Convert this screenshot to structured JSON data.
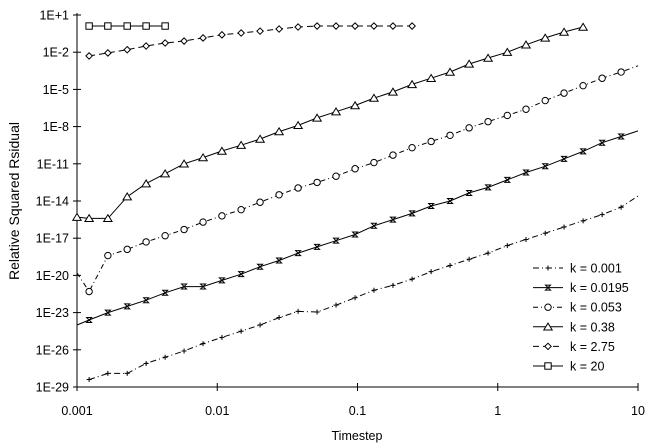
{
  "chart_data": {
    "type": "line",
    "title": "",
    "xlabel": "Timestep",
    "ylabel": "Relative Squared Rsidual",
    "xscale": "log",
    "yscale": "log",
    "xlim": [
      0.001,
      10
    ],
    "ylim_log10": [
      -29,
      1
    ],
    "x_ticks": [
      {
        "value": 0.001,
        "label": "0.001"
      },
      {
        "value": 0.01,
        "label": "0.01"
      },
      {
        "value": 0.1,
        "label": "0.1"
      },
      {
        "value": 1,
        "label": "1"
      },
      {
        "value": 10,
        "label": "10"
      }
    ],
    "y_ticks": [
      {
        "log10": 1,
        "label": "1E+1"
      },
      {
        "log10": -2,
        "label": "1E-2"
      },
      {
        "log10": -5,
        "label": "1E-5"
      },
      {
        "log10": -8,
        "label": "1E-8"
      },
      {
        "log10": -11,
        "label": "1E-11"
      },
      {
        "log10": -14,
        "label": "1E-14"
      },
      {
        "log10": -17,
        "label": "1E-17"
      },
      {
        "log10": -20,
        "label": "1E-20"
      },
      {
        "log10": -23,
        "label": "1E-23"
      },
      {
        "log10": -26,
        "label": "1E-26"
      },
      {
        "log10": -29,
        "label": "1E-29"
      }
    ],
    "grid": false,
    "legend_position": "bottom-right",
    "x": [
      0.001,
      0.00122,
      0.00166,
      0.00228,
      0.00311,
      0.00425,
      0.0058,
      0.00792,
      0.0108,
      0.0148,
      0.0202,
      0.0276,
      0.0377,
      0.0515,
      0.0703,
      0.0961,
      0.131,
      0.179,
      0.245,
      0.335,
      0.457,
      0.625,
      0.853,
      1.17,
      1.59,
      2.18,
      2.97,
      4.06,
      5.55,
      7.58,
      10
    ],
    "series": [
      {
        "name": "k = 0.001",
        "dash": "6,3,1,3",
        "marker": "plus",
        "log10_y": [
          null,
          -28.4,
          -27.9,
          -27.9,
          -27.1,
          -26.6,
          -26.1,
          -25.5,
          -25.0,
          -24.5,
          -24.0,
          -23.4,
          -22.9,
          -22.95,
          -22.4,
          -21.8,
          -21.2,
          -20.8,
          -20.3,
          -19.7,
          -19.2,
          -18.7,
          -18.2,
          -17.6,
          -17.1,
          -16.6,
          -16.1,
          -15.6,
          -15.1,
          -14.5,
          -13.6
        ]
      },
      {
        "name": "k = 0.0195",
        "dash": "",
        "marker": "hourglass",
        "log10_y": [
          -24.0,
          -23.6,
          -23.0,
          -22.5,
          -22.0,
          -21.4,
          -20.9,
          -20.9,
          -20.4,
          -19.9,
          -19.3,
          -18.8,
          -18.2,
          -17.7,
          -17.2,
          -16.7,
          -16.0,
          -15.5,
          -15.0,
          -14.4,
          -14.0,
          -13.35,
          -12.9,
          -12.3,
          -11.7,
          -11.2,
          -10.6,
          -10.0,
          -9.3,
          -8.8,
          -8.35
        ]
      },
      {
        "name": "k = 0.053",
        "dash": "5,3,1,3",
        "marker": "circle",
        "log10_y": [
          -19.8,
          -21.3,
          -18.4,
          -17.9,
          -17.3,
          -16.8,
          -16.3,
          -15.7,
          -15.2,
          -14.7,
          -14.1,
          -13.5,
          -12.95,
          -12.5,
          -12.0,
          -11.4,
          -10.9,
          -10.3,
          -9.7,
          -9.2,
          -8.7,
          -8.1,
          -7.6,
          -7.1,
          -6.6,
          -5.9,
          -5.3,
          -4.7,
          -4.1,
          -3.6,
          -3.1
        ]
      },
      {
        "name": "k = 0.38",
        "dash": "",
        "marker": "triangle",
        "log10_y": [
          -15.3,
          -15.4,
          -15.4,
          -13.65,
          -12.6,
          -11.8,
          -11.0,
          -10.5,
          -9.97,
          -9.5,
          -9.0,
          -8.4,
          -7.9,
          -7.3,
          -6.8,
          -6.3,
          -5.7,
          -5.2,
          -4.6,
          -4.1,
          -3.6,
          -2.95,
          -2.47,
          -2.0,
          -1.4,
          -0.85,
          -0.37,
          0.03,
          null,
          null,
          null
        ]
      },
      {
        "name": "k = 2.75",
        "dash": "6,4",
        "marker": "diamond",
        "log10_y": [
          null,
          -2.3,
          -2.06,
          -1.8,
          -1.5,
          -1.26,
          -1.1,
          -0.85,
          -0.6,
          -0.45,
          -0.3,
          -0.13,
          0.03,
          0.11,
          0.11,
          0.11,
          0.11,
          0.11,
          0.11,
          null,
          null,
          null,
          null,
          null,
          null,
          null,
          null,
          null,
          null,
          null,
          null
        ]
      },
      {
        "name": "k = 20",
        "dash": "",
        "marker": "square",
        "log10_y": [
          null,
          0.11,
          0.11,
          0.11,
          0.11,
          0.11,
          null,
          null,
          null,
          null,
          null,
          null,
          null,
          null,
          null,
          null,
          null,
          null,
          null,
          null,
          null,
          null,
          null,
          null,
          null,
          null,
          null,
          null,
          null,
          null,
          null
        ]
      }
    ]
  },
  "colors": {
    "line": "#000000",
    "background": "#ffffff"
  }
}
